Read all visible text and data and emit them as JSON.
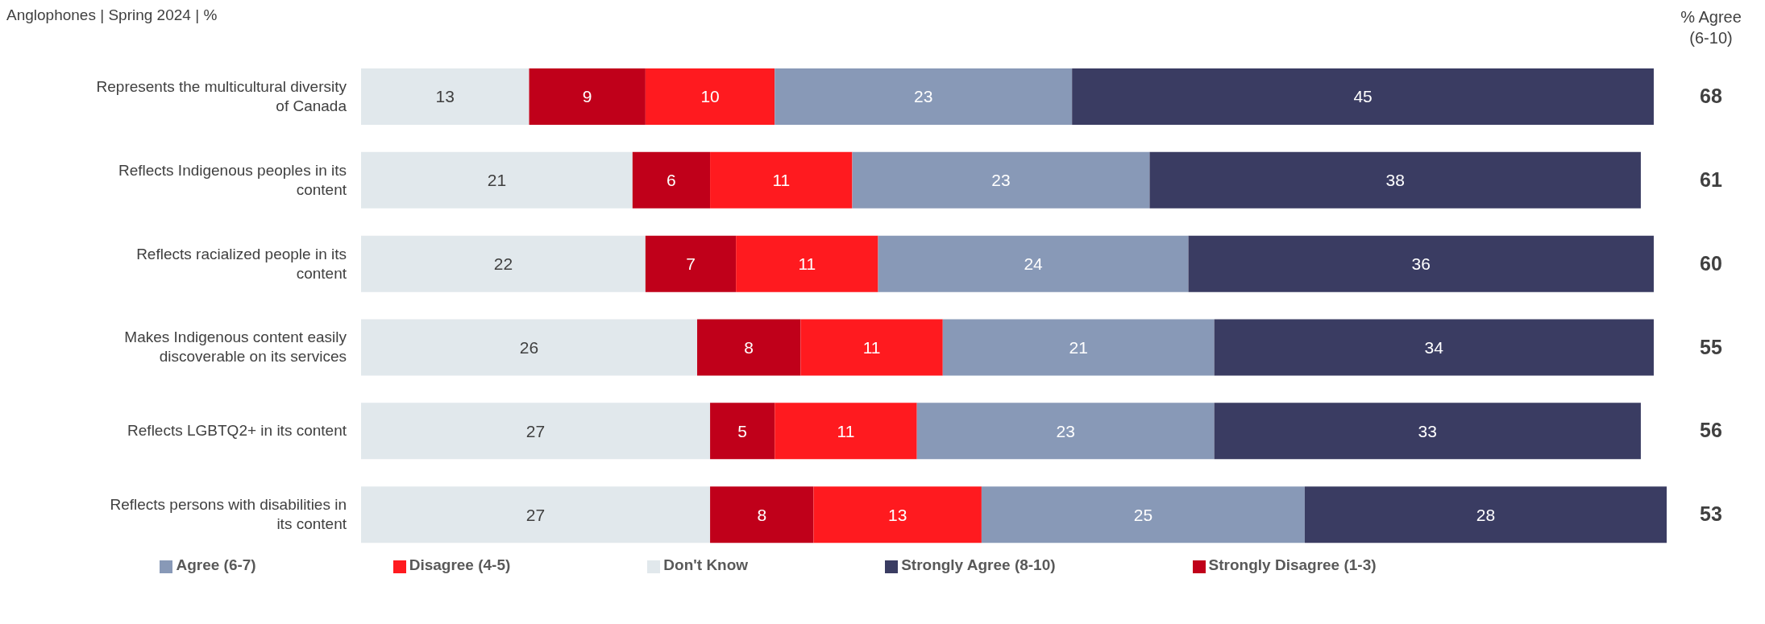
{
  "chart_data": {
    "type": "bar",
    "orientation": "horizontal",
    "stacked": true,
    "data_labels": true,
    "legend": "bottom",
    "title": "Anglophones | Spring 2024 | %",
    "categories": [
      "Represents the multicultural diversity of Canada",
      "Reflects Indigenous peoples in its content",
      "Reflects racialized people in its content",
      "Makes Indigenous content easily discoverable on its services",
      "Reflects LGBTQ2+ in its content",
      "Reflects persons with disabilities in its content"
    ],
    "series": [
      {
        "name": "Don't Know",
        "color": "#e1e8ec",
        "values": [
          13,
          21,
          22,
          26,
          27,
          27
        ]
      },
      {
        "name": "Strongly Disagree (1-3)",
        "color": "#c0001a",
        "values": [
          9,
          6,
          7,
          8,
          5,
          8
        ]
      },
      {
        "name": "Disagree (4-5)",
        "color": "#ff1a1f",
        "values": [
          10,
          11,
          11,
          11,
          11,
          13
        ]
      },
      {
        "name": "Agree (6-7)",
        "color": "#8899b7",
        "values": [
          23,
          23,
          24,
          21,
          23,
          25
        ]
      },
      {
        "name": "Strongly Agree (8-10)",
        "color": "#3a3c62",
        "values": [
          45,
          38,
          36,
          34,
          33,
          28
        ]
      }
    ],
    "annotations": [
      "% Agree (6-10)",
      "68",
      "61",
      "60",
      "55",
      "56",
      "53"
    ]
  }
}
